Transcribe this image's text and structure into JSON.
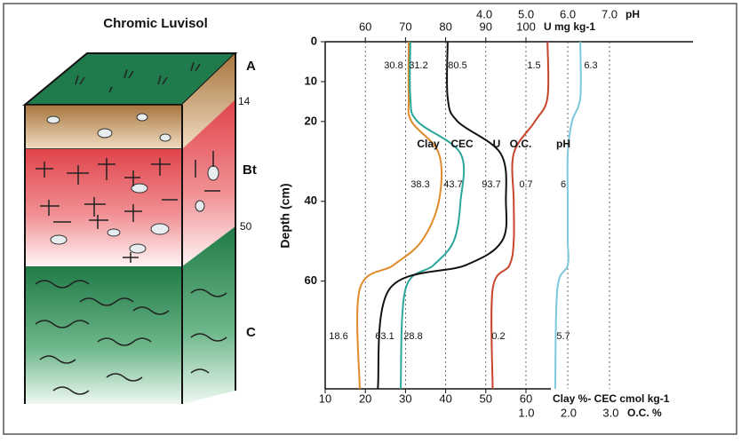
{
  "profile": {
    "title": "Chromic Luvisol",
    "horizons": [
      "A",
      "Bt",
      "C"
    ],
    "depths": [
      14,
      50
    ]
  },
  "chart_data": {
    "type": "line",
    "y_label": "Depth (cm)",
    "ylim": [
      0,
      87
    ],
    "yticks": [
      0,
      10,
      20,
      40,
      60
    ],
    "depth": [
      0,
      14,
      20,
      28,
      40,
      50,
      56,
      62,
      87
    ],
    "x_axes": [
      {
        "label": "Clay %- CEC cmol kg-1",
        "position": "bottom",
        "xlim": [
          10,
          101.6
        ],
        "xticks": [
          10,
          20,
          30,
          40,
          50,
          60
        ],
        "grid": true
      },
      {
        "label": "O.C. %",
        "position": "bottom",
        "xlim": [
          -3.77,
          4.95
        ],
        "xticks": [
          {
            "value": 1,
            "label": "1.0"
          },
          {
            "value": 2,
            "label": "2.0"
          },
          {
            "value": 3,
            "label": "3.0"
          }
        ],
        "grid": false
      },
      {
        "label": "U mg kg-1",
        "position": "top",
        "xlim": [
          50,
          141.6
        ],
        "xticks": [
          60,
          70,
          80,
          90,
          100
        ],
        "grid": false
      },
      {
        "label": "pH",
        "position": "top",
        "xlim": [
          0.19,
          9.0
        ],
        "xticks": [
          {
            "value": 4,
            "label": "4.0"
          },
          {
            "value": 5,
            "label": "5.0"
          },
          {
            "value": 6,
            "label": "6.0"
          },
          {
            "value": 7,
            "label": "7.0"
          }
        ],
        "grid": true
      }
    ],
    "series": [
      {
        "name": "Clay",
        "color": "#e08a2a",
        "axis": 0,
        "values": [
          30.8,
          30.8,
          31.5,
          38.3,
          38.3,
          34,
          27,
          18.6,
          18.6
        ]
      },
      {
        "name": "CEC",
        "color": "#2aa69a",
        "axis": 0,
        "values": [
          31.2,
          31.2,
          33,
          43.7,
          43.7,
          42,
          37,
          30,
          28.8
        ]
      },
      {
        "name": "U",
        "color": "#111111",
        "axis": 2,
        "values": [
          80.5,
          80.5,
          83,
          93.7,
          95,
          94,
          85,
          66,
          63.1
        ]
      },
      {
        "name": "O.C.",
        "color": "#c8452c",
        "axis": 1,
        "values": [
          1.5,
          1.5,
          1.2,
          0.7,
          0.7,
          0.7,
          0.6,
          0.2,
          0.2
        ]
      },
      {
        "name": "pH",
        "color": "#7ec8dc",
        "axis": 3,
        "values": [
          6.3,
          6.3,
          6.1,
          6.0,
          6.0,
          6.0,
          6.0,
          5.75,
          5.7
        ]
      }
    ]
  }
}
